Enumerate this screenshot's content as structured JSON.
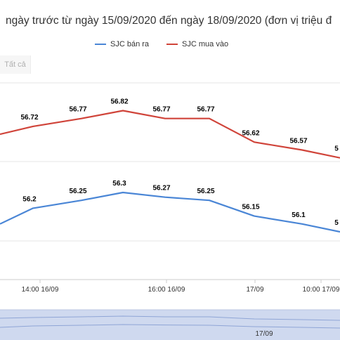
{
  "title": "ngày trước từ ngày 15/09/2020 đến ngày 18/09/2020 (đơn vị triệu đ",
  "range_button": {
    "label": "Tất cả"
  },
  "legend": [
    {
      "label": "SJC bán ra",
      "color": "#4a86d6"
    },
    {
      "label": "SJC mua vào",
      "color": "#d0443a"
    }
  ],
  "navigator": {
    "tick_label": "17/09"
  },
  "chart_data": {
    "type": "line",
    "x_ticks": [
      "14:00 16/09",
      "16:00 16/09",
      "17/09",
      "10:00 17/09"
    ],
    "series": [
      {
        "name": "SJC bán ra",
        "color": "#4a86d6",
        "values": [
          56.1,
          56.2,
          56.25,
          56.3,
          56.27,
          56.25,
          56.15,
          56.1,
          56.05
        ],
        "labels": [
          "",
          "56.2",
          "56.25",
          "56.3",
          "56.27",
          "56.25",
          "56.15",
          "56.1",
          "5"
        ]
      },
      {
        "name": "SJC mua vào",
        "color": "#d0443a",
        "values": [
          56.67,
          56.72,
          56.77,
          56.82,
          56.77,
          56.77,
          56.62,
          56.57,
          56.52
        ],
        "labels": [
          "",
          "56.72",
          "56.77",
          "56.82",
          "56.77",
          "56.77",
          "56.62",
          "56.57",
          "5"
        ]
      }
    ],
    "grid": true,
    "legend_position": "top"
  }
}
